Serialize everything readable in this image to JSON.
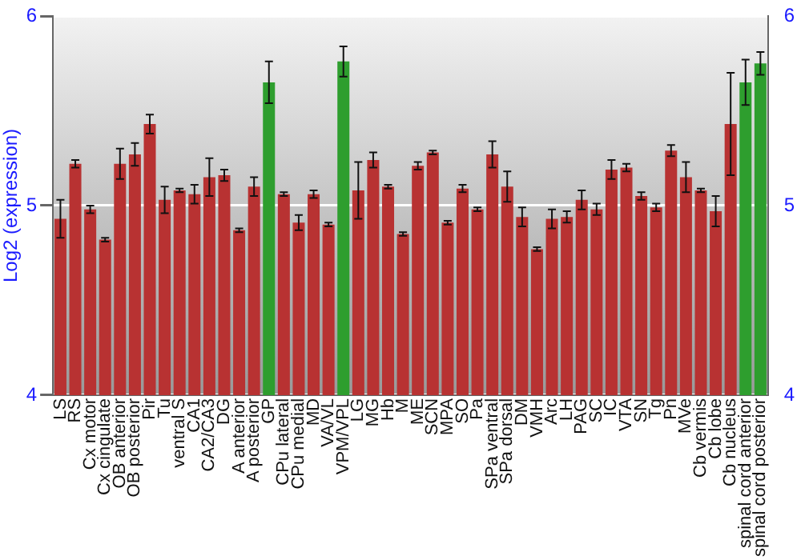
{
  "chart_data": {
    "type": "bar",
    "ylabel": "Log2 (expression)",
    "categories": [
      "LS",
      "RS",
      "Cx motor",
      "Cx cingulate",
      "OB anterior",
      "OB posterior",
      "Pir",
      "Tu",
      "ventral S",
      "CA1",
      "CA2/CA3",
      "DG",
      "A anterior",
      "A posterior",
      "GP",
      "CPu lateral",
      "CPu medial",
      "MD",
      "VA/VL",
      "VPM/VPL",
      "LG",
      "MG",
      "Hb",
      "M",
      "ME",
      "SCN",
      "MPA",
      "SO",
      "Pa",
      "SPa ventral",
      "SPa dorsal",
      "DM",
      "VMH",
      "Arc",
      "LH",
      "PAG",
      "SC",
      "IC",
      "VTA",
      "SN",
      "Tg",
      "Pn",
      "MVe",
      "Cb vermis",
      "Cb lobe",
      "Cb nucleus",
      "spinal cord anterior",
      "spinal cord posterior"
    ],
    "values": [
      4.93,
      5.22,
      4.98,
      4.82,
      5.22,
      5.27,
      5.43,
      5.03,
      5.08,
      5.06,
      5.15,
      5.16,
      4.87,
      5.1,
      5.65,
      5.06,
      4.91,
      5.06,
      4.9,
      5.76,
      5.08,
      5.24,
      5.1,
      4.85,
      5.21,
      5.28,
      4.91,
      5.09,
      4.98,
      5.27,
      5.1,
      4.94,
      4.77,
      4.93,
      4.94,
      5.03,
      4.98,
      5.19,
      5.2,
      5.05,
      4.99,
      5.29,
      5.15,
      5.08,
      4.97,
      5.43,
      5.65,
      5.75
    ],
    "errors": [
      0.1,
      0.02,
      0.02,
      0.01,
      0.08,
      0.06,
      0.05,
      0.07,
      0.01,
      0.05,
      0.1,
      0.03,
      0.01,
      0.05,
      0.11,
      0.01,
      0.04,
      0.02,
      0.01,
      0.08,
      0.15,
      0.04,
      0.01,
      0.01,
      0.02,
      0.01,
      0.01,
      0.02,
      0.01,
      0.07,
      0.08,
      0.05,
      0.01,
      0.05,
      0.03,
      0.05,
      0.03,
      0.05,
      0.02,
      0.02,
      0.02,
      0.03,
      0.08,
      0.01,
      0.08,
      0.27,
      0.12,
      0.06
    ],
    "colors": [
      "#b83232",
      "#b83232",
      "#b83232",
      "#b83232",
      "#b83232",
      "#b83232",
      "#b83232",
      "#b83232",
      "#b83232",
      "#b83232",
      "#b83232",
      "#b83232",
      "#b83232",
      "#b83232",
      "#2e9e2e",
      "#b83232",
      "#b83232",
      "#b83232",
      "#b83232",
      "#2e9e2e",
      "#b83232",
      "#b83232",
      "#b83232",
      "#b83232",
      "#b83232",
      "#b83232",
      "#b83232",
      "#b83232",
      "#b83232",
      "#b83232",
      "#b83232",
      "#b83232",
      "#b83232",
      "#b83232",
      "#b83232",
      "#b83232",
      "#b83232",
      "#b83232",
      "#b83232",
      "#b83232",
      "#b83232",
      "#b83232",
      "#b83232",
      "#b83232",
      "#b83232",
      "#b83232",
      "#2e9e2e",
      "#2e9e2e"
    ],
    "ylim": [
      4,
      6
    ],
    "yticks": [
      4,
      5,
      6
    ],
    "y2lim": [
      4,
      6
    ],
    "y2ticks": [
      4,
      5,
      6
    ],
    "grid": "y",
    "legend": false
  }
}
